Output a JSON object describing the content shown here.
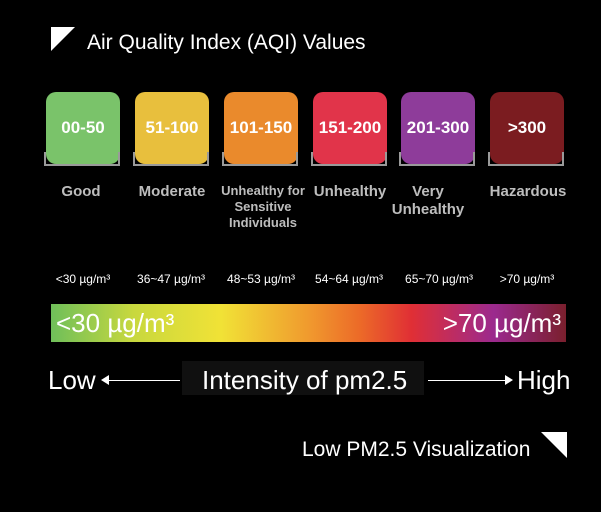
{
  "title": "Air Quality Index (AQI) Values",
  "categories": [
    {
      "range": "00-50",
      "label": "Good",
      "color": "#7ac36a",
      "concentration": "<30 µg/m³"
    },
    {
      "range": "51-100",
      "label": "Moderate",
      "color": "#e8bf3d",
      "concentration": "36~47 µg/m³"
    },
    {
      "range": "101-150",
      "label": "Unhealthy for Sensitive Individuals",
      "color": "#ea8a2c",
      "concentration": "48~53 µg/m³"
    },
    {
      "range": "151-200",
      "label": "Unhealthy",
      "color": "#e1344a",
      "concentration": "54~64 µg/m³"
    },
    {
      "range": "201-300",
      "label": "Very Unhealthy",
      "color": "#8e3c9a",
      "concentration": "65~70 µg/m³"
    },
    {
      "range": ">300",
      "label": "Hazardous",
      "color": "#7b1c20",
      "concentration": ">70 µg/m³"
    }
  ],
  "gradient": {
    "low_label": "<30 µg/m³",
    "high_label": ">70 µg/m³"
  },
  "scale": {
    "low": "Low",
    "title": "Intensity of pm2.5",
    "high": "High"
  },
  "caption": "Low PM2.5 Visualization"
}
